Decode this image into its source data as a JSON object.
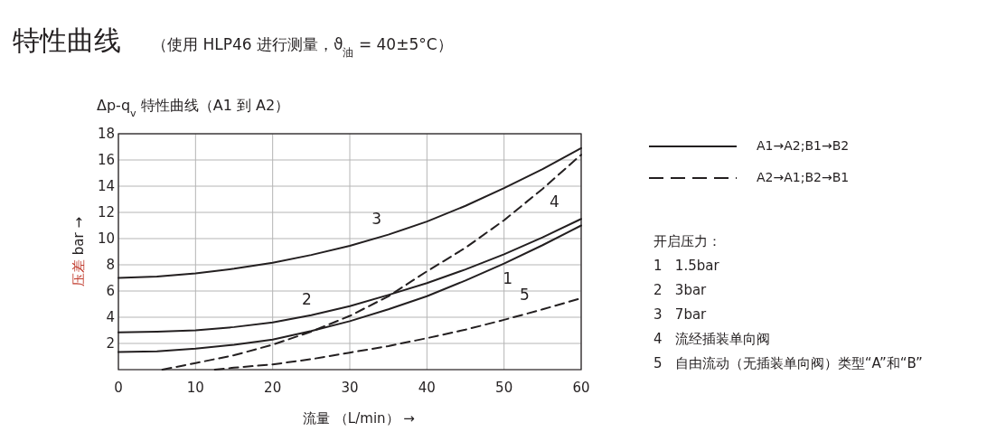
{
  "chart_data": {
    "type": "line",
    "title": "特性曲线",
    "subtitle": "（使用 HLP46 进行测量，ϑ$_{油}$ = 40±5°C）",
    "xlabel": "流量 （L/min）  →",
    "ylabel": "压差  bar →",
    "xlim": [
      0,
      60
    ],
    "xticks": [
      0,
      10,
      20,
      30,
      40,
      50,
      60
    ],
    "ylim": [
      0,
      18
    ],
    "yticks": [
      2,
      4,
      6,
      8,
      10,
      12,
      14,
      16,
      18
    ],
    "grid": true,
    "series": [
      {
        "name": "1",
        "color": "#231f20",
        "line_style": "solid",
        "x": [
          0,
          5,
          10,
          15,
          20,
          25,
          30,
          35,
          40,
          45,
          50,
          55,
          60
        ],
        "values": [
          1.35,
          1.4,
          1.6,
          1.9,
          2.3,
          2.95,
          3.7,
          4.6,
          5.6,
          6.8,
          8.1,
          9.5,
          11.0
        ]
      },
      {
        "name": "2",
        "color": "#231f20",
        "line_style": "solid",
        "x": [
          0,
          5,
          10,
          15,
          20,
          25,
          30,
          35,
          40,
          45,
          50,
          55,
          60
        ],
        "values": [
          2.85,
          2.9,
          3.0,
          3.25,
          3.6,
          4.15,
          4.85,
          5.7,
          6.6,
          7.65,
          8.8,
          10.1,
          11.5
        ]
      },
      {
        "name": "3",
        "color": "#231f20",
        "line_style": "solid",
        "x": [
          0,
          5,
          10,
          15,
          20,
          25,
          30,
          35,
          40,
          45,
          50,
          55,
          60
        ],
        "values": [
          7.0,
          7.1,
          7.35,
          7.7,
          8.15,
          8.75,
          9.45,
          10.3,
          11.3,
          12.5,
          13.85,
          15.3,
          16.9
        ]
      },
      {
        "name": "4",
        "color": "#231f20",
        "line_style": "dashed",
        "x": [
          5.7,
          10,
          15,
          20,
          25,
          30,
          35,
          40,
          45,
          50,
          55,
          60
        ],
        "values": [
          0,
          0.5,
          1.1,
          1.9,
          2.9,
          4.1,
          5.6,
          7.5,
          9.3,
          11.4,
          13.8,
          16.4
        ]
      },
      {
        "name": "5",
        "color": "#231f20",
        "line_style": "dashed",
        "x": [
          12.5,
          15,
          20,
          25,
          30,
          35,
          40,
          45,
          50,
          55,
          60
        ],
        "values": [
          0,
          0.15,
          0.4,
          0.8,
          1.3,
          1.8,
          2.4,
          3.05,
          3.8,
          4.6,
          5.45
        ]
      }
    ],
    "annotations": [
      "Δp-q$_{v}$ 特性曲线（A1 到 A2）",
      "A1→A2;B1→B2",
      "A2→A1;B2→B1",
      "开启压力：",
      "1   1.5bar",
      "2   3bar",
      "3   7bar",
      "4   流经插装单向阀",
      "5   自由流动（无插装单向阀）类型“A”和“B”"
    ]
  }
}
